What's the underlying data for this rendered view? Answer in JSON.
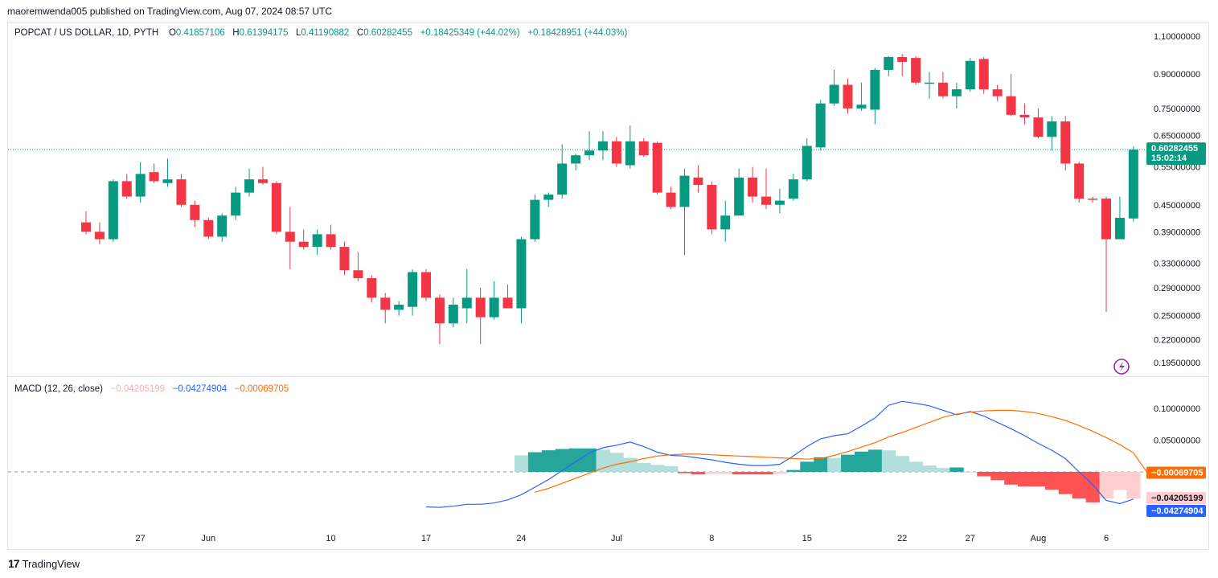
{
  "header": {
    "publisher_line": "maoremwenda005 published on TradingView.com, Aug 07, 2024 08:57 UTC"
  },
  "legend": {
    "symbol": "POPCAT / US DOLLAR, 1D, PYTH",
    "o_label": "O",
    "o_value": "0.41857106",
    "h_label": "H",
    "h_value": "0.61394175",
    "l_label": "L",
    "l_value": "0.41190882",
    "c_label": "C",
    "c_value": "0.60282455",
    "change1": "+0.18425349 (+44.02%)",
    "change2": "+0.18428951 (+44.03%)"
  },
  "macd_legend": {
    "title": "MACD (12, 26, close)",
    "hist_value": "−0.04205199",
    "macd_value": "−0.04274904",
    "signal_value": "−0.00069705"
  },
  "price_badge": {
    "price": "0.60282455",
    "countdown": "15:02:14"
  },
  "footer": {
    "brand": "TradingView",
    "logo_glyph": "17"
  },
  "colors": {
    "up": "#089981",
    "down": "#f23645",
    "hist_up_strong": "#26a69a",
    "hist_up_weak": "#b2dfdb",
    "hist_down_strong": "#ff5252",
    "hist_down_weak": "#ffcdd2",
    "macd_line": "#2962ff",
    "signal_line": "#ff6d00"
  },
  "chart_data": [
    {
      "type": "candlestick",
      "title": "POPCAT / US DOLLAR, 1D, PYTH",
      "y_scale": "log",
      "ylim": [
        0.185,
        1.12
      ],
      "y_ticks": [
        "1.10000000",
        "0.90000000",
        "0.75000000",
        "0.65000000",
        "0.55000000",
        "0.45000000",
        "0.39000000",
        "0.33000000",
        "0.29000000",
        "0.25000000",
        "0.22000000",
        "0.19500000"
      ],
      "x_tick_labels": [
        {
          "label": "27",
          "index": 4
        },
        {
          "label": "Jun",
          "index": 9
        },
        {
          "label": "10",
          "index": 18
        },
        {
          "label": "17",
          "index": 25
        },
        {
          "label": "24",
          "index": 32
        },
        {
          "label": "Jul",
          "index": 39
        },
        {
          "label": "8",
          "index": 46
        },
        {
          "label": "15",
          "index": 53
        },
        {
          "label": "22",
          "index": 60
        },
        {
          "label": "27",
          "index": 65
        },
        {
          "label": "Aug",
          "index": 70
        },
        {
          "label": "6",
          "index": 75
        }
      ],
      "last_price": 0.60282455,
      "candles": [
        {
          "o": 0.41,
          "h": 0.435,
          "l": 0.385,
          "c": 0.39
        },
        {
          "o": 0.39,
          "h": 0.41,
          "l": 0.365,
          "c": 0.375
        },
        {
          "o": 0.375,
          "h": 0.515,
          "l": 0.37,
          "c": 0.51
        },
        {
          "o": 0.51,
          "h": 0.53,
          "l": 0.465,
          "c": 0.47
        },
        {
          "o": 0.47,
          "h": 0.565,
          "l": 0.455,
          "c": 0.53
        },
        {
          "o": 0.535,
          "h": 0.56,
          "l": 0.505,
          "c": 0.51
        },
        {
          "o": 0.505,
          "h": 0.575,
          "l": 0.495,
          "c": 0.515
        },
        {
          "o": 0.515,
          "h": 0.53,
          "l": 0.445,
          "c": 0.45
        },
        {
          "o": 0.45,
          "h": 0.46,
          "l": 0.4,
          "c": 0.415
        },
        {
          "o": 0.415,
          "h": 0.42,
          "l": 0.375,
          "c": 0.38
        },
        {
          "o": 0.38,
          "h": 0.43,
          "l": 0.37,
          "c": 0.425
        },
        {
          "o": 0.425,
          "h": 0.495,
          "l": 0.415,
          "c": 0.48
        },
        {
          "o": 0.48,
          "h": 0.545,
          "l": 0.47,
          "c": 0.515
        },
        {
          "o": 0.515,
          "h": 0.55,
          "l": 0.5,
          "c": 0.505
        },
        {
          "o": 0.505,
          "h": 0.51,
          "l": 0.385,
          "c": 0.39
        },
        {
          "o": 0.39,
          "h": 0.445,
          "l": 0.32,
          "c": 0.37
        },
        {
          "o": 0.37,
          "h": 0.395,
          "l": 0.355,
          "c": 0.36
        },
        {
          "o": 0.36,
          "h": 0.395,
          "l": 0.345,
          "c": 0.385
        },
        {
          "o": 0.385,
          "h": 0.405,
          "l": 0.355,
          "c": 0.36
        },
        {
          "o": 0.36,
          "h": 0.37,
          "l": 0.31,
          "c": 0.318
        },
        {
          "o": 0.318,
          "h": 0.35,
          "l": 0.3,
          "c": 0.305
        },
        {
          "o": 0.305,
          "h": 0.31,
          "l": 0.268,
          "c": 0.275
        },
        {
          "o": 0.275,
          "h": 0.282,
          "l": 0.24,
          "c": 0.258
        },
        {
          "o": 0.258,
          "h": 0.27,
          "l": 0.25,
          "c": 0.265
        },
        {
          "o": 0.262,
          "h": 0.32,
          "l": 0.25,
          "c": 0.315
        },
        {
          "o": 0.315,
          "h": 0.32,
          "l": 0.27,
          "c": 0.275
        },
        {
          "o": 0.275,
          "h": 0.28,
          "l": 0.215,
          "c": 0.24
        },
        {
          "o": 0.24,
          "h": 0.275,
          "l": 0.235,
          "c": 0.265
        },
        {
          "o": 0.26,
          "h": 0.32,
          "l": 0.24,
          "c": 0.275
        },
        {
          "o": 0.275,
          "h": 0.29,
          "l": 0.215,
          "c": 0.248
        },
        {
          "o": 0.248,
          "h": 0.3,
          "l": 0.245,
          "c": 0.275
        },
        {
          "o": 0.275,
          "h": 0.295,
          "l": 0.26,
          "c": 0.26
        },
        {
          "o": 0.26,
          "h": 0.38,
          "l": 0.24,
          "c": 0.375
        },
        {
          "o": 0.375,
          "h": 0.475,
          "l": 0.37,
          "c": 0.462
        },
        {
          "o": 0.462,
          "h": 0.48,
          "l": 0.445,
          "c": 0.475
        },
        {
          "o": 0.475,
          "h": 0.62,
          "l": 0.465,
          "c": 0.56
        },
        {
          "o": 0.56,
          "h": 0.59,
          "l": 0.54,
          "c": 0.585
        },
        {
          "o": 0.585,
          "h": 0.665,
          "l": 0.57,
          "c": 0.6
        },
        {
          "o": 0.6,
          "h": 0.665,
          "l": 0.57,
          "c": 0.63
        },
        {
          "o": 0.63,
          "h": 0.645,
          "l": 0.55,
          "c": 0.56
        },
        {
          "o": 0.555,
          "h": 0.685,
          "l": 0.545,
          "c": 0.63
        },
        {
          "o": 0.63,
          "h": 0.64,
          "l": 0.58,
          "c": 0.585
        },
        {
          "o": 0.625,
          "h": 0.63,
          "l": 0.475,
          "c": 0.48
        },
        {
          "o": 0.48,
          "h": 0.495,
          "l": 0.44,
          "c": 0.445
        },
        {
          "o": 0.445,
          "h": 0.545,
          "l": 0.345,
          "c": 0.525
        },
        {
          "o": 0.52,
          "h": 0.555,
          "l": 0.48,
          "c": 0.5
        },
        {
          "o": 0.5,
          "h": 0.51,
          "l": 0.385,
          "c": 0.395
        },
        {
          "o": 0.395,
          "h": 0.46,
          "l": 0.37,
          "c": 0.425
        },
        {
          "o": 0.425,
          "h": 0.545,
          "l": 0.425,
          "c": 0.52
        },
        {
          "o": 0.52,
          "h": 0.55,
          "l": 0.455,
          "c": 0.47
        },
        {
          "o": 0.47,
          "h": 0.545,
          "l": 0.44,
          "c": 0.45
        },
        {
          "o": 0.45,
          "h": 0.49,
          "l": 0.43,
          "c": 0.46
        },
        {
          "o": 0.465,
          "h": 0.53,
          "l": 0.46,
          "c": 0.515
        },
        {
          "o": 0.515,
          "h": 0.64,
          "l": 0.51,
          "c": 0.615
        },
        {
          "o": 0.61,
          "h": 0.785,
          "l": 0.6,
          "c": 0.77
        },
        {
          "o": 0.77,
          "h": 0.92,
          "l": 0.76,
          "c": 0.85
        },
        {
          "o": 0.85,
          "h": 0.88,
          "l": 0.73,
          "c": 0.75
        },
        {
          "o": 0.75,
          "h": 0.86,
          "l": 0.74,
          "c": 0.765
        },
        {
          "o": 0.745,
          "h": 0.93,
          "l": 0.69,
          "c": 0.92
        },
        {
          "o": 0.92,
          "h": 0.99,
          "l": 0.89,
          "c": 0.985
        },
        {
          "o": 0.985,
          "h": 1.0,
          "l": 0.89,
          "c": 0.96
        },
        {
          "o": 0.98,
          "h": 0.99,
          "l": 0.85,
          "c": 0.86
        },
        {
          "o": 0.86,
          "h": 0.91,
          "l": 0.79,
          "c": 0.86
        },
        {
          "o": 0.86,
          "h": 0.91,
          "l": 0.79,
          "c": 0.8
        },
        {
          "o": 0.8,
          "h": 0.86,
          "l": 0.75,
          "c": 0.83
        },
        {
          "o": 0.83,
          "h": 0.98,
          "l": 0.82,
          "c": 0.965
        },
        {
          "o": 0.975,
          "h": 0.985,
          "l": 0.81,
          "c": 0.83
        },
        {
          "o": 0.83,
          "h": 0.85,
          "l": 0.78,
          "c": 0.8
        },
        {
          "o": 0.8,
          "h": 0.9,
          "l": 0.72,
          "c": 0.725
        },
        {
          "o": 0.725,
          "h": 0.77,
          "l": 0.69,
          "c": 0.715
        },
        {
          "o": 0.715,
          "h": 0.75,
          "l": 0.64,
          "c": 0.645
        },
        {
          "o": 0.645,
          "h": 0.72,
          "l": 0.6,
          "c": 0.7
        },
        {
          "o": 0.7,
          "h": 0.72,
          "l": 0.54,
          "c": 0.56
        },
        {
          "o": 0.56,
          "h": 0.565,
          "l": 0.455,
          "c": 0.465
        },
        {
          "o": 0.465,
          "h": 0.47,
          "l": 0.455,
          "c": 0.462
        },
        {
          "o": 0.465,
          "h": 0.47,
          "l": 0.255,
          "c": 0.375
        },
        {
          "o": 0.375,
          "h": 0.47,
          "l": 0.375,
          "c": 0.42
        },
        {
          "o": 0.41857106,
          "h": 0.61394175,
          "l": 0.41190882,
          "c": 0.60282455
        }
      ]
    },
    {
      "type": "macd",
      "title": "MACD (12, 26, close)",
      "ylim": [
        -0.078,
        0.132
      ],
      "y_ticks": [
        "0.10000000",
        "0.05000000"
      ],
      "series": [
        {
          "name": "Histogram",
          "start_index": 32,
          "values": [
            0.026,
            0.031,
            0.034,
            0.036,
            0.037,
            0.037,
            0.035,
            0.03,
            0.022,
            0.014,
            0.011,
            0.009,
            -0.002,
            -0.004,
            -0.003,
            -0.003,
            -0.004,
            -0.004,
            -0.004,
            -0.003,
            0.003,
            0.016,
            0.023,
            0.022,
            0.027,
            0.032,
            0.035,
            0.034,
            0.025,
            0.016,
            0.01,
            0.006,
            0.007,
            -0.001,
            -0.007,
            -0.013,
            -0.02,
            -0.023,
            -0.023,
            -0.028,
            -0.035,
            -0.042,
            -0.048,
            -0.042,
            -0.02827,
            -0.04205199
          ],
          "colors": [
            "weak_up",
            "up",
            "up",
            "up",
            "up",
            "up",
            "weak_up",
            "weak_up",
            "weak_up",
            "weak_up",
            "weak_up",
            "weak_up",
            "down",
            "down",
            "weak_down",
            "weak_down",
            "down",
            "down",
            "down",
            "weak_down",
            "up",
            "up",
            "up",
            "weak_up",
            "up",
            "up",
            "up",
            "weak_up",
            "weak_up",
            "weak_up",
            "weak_up",
            "weak_up",
            "up",
            "weak_down",
            "down",
            "down",
            "down",
            "down",
            "down",
            "down",
            "down",
            "down",
            "down",
            "weak_down",
            "weak_down",
            "weak_down"
          ]
        },
        {
          "name": "MACD",
          "start_index": 25,
          "values": [
            -0.055,
            -0.056,
            -0.054,
            -0.051,
            -0.051,
            -0.049,
            -0.044,
            -0.036,
            -0.024,
            -0.012,
            0.002,
            0.016,
            0.03,
            0.038,
            0.042,
            0.047,
            0.04,
            0.031,
            0.026,
            0.025,
            0.022,
            0.019,
            0.015,
            0.012,
            0.01,
            0.01,
            0.012,
            0.025,
            0.04,
            0.052,
            0.057,
            0.06,
            0.072,
            0.085,
            0.105,
            0.111,
            0.108,
            0.104,
            0.097,
            0.09,
            0.095,
            0.088,
            0.078,
            0.068,
            0.057,
            0.045,
            0.034,
            0.021,
            0.0,
            -0.02,
            -0.045,
            -0.05,
            -0.04274904
          ]
        },
        {
          "name": "Signal",
          "start_index": 33,
          "values": [
            -0.032,
            -0.026,
            -0.018,
            -0.01,
            -0.002,
            0.006,
            0.012,
            0.016,
            0.021,
            0.025,
            0.027,
            0.028,
            0.028,
            0.027,
            0.026,
            0.025,
            0.024,
            0.023,
            0.022,
            0.021,
            0.02,
            0.021,
            0.026,
            0.032,
            0.039,
            0.046,
            0.055,
            0.062,
            0.07,
            0.078,
            0.086,
            0.091,
            0.094,
            0.096,
            0.097,
            0.097,
            0.095,
            0.092,
            0.087,
            0.081,
            0.073,
            0.064,
            0.054,
            0.043,
            0.03,
            -0.00069705
          ]
        }
      ]
    }
  ]
}
